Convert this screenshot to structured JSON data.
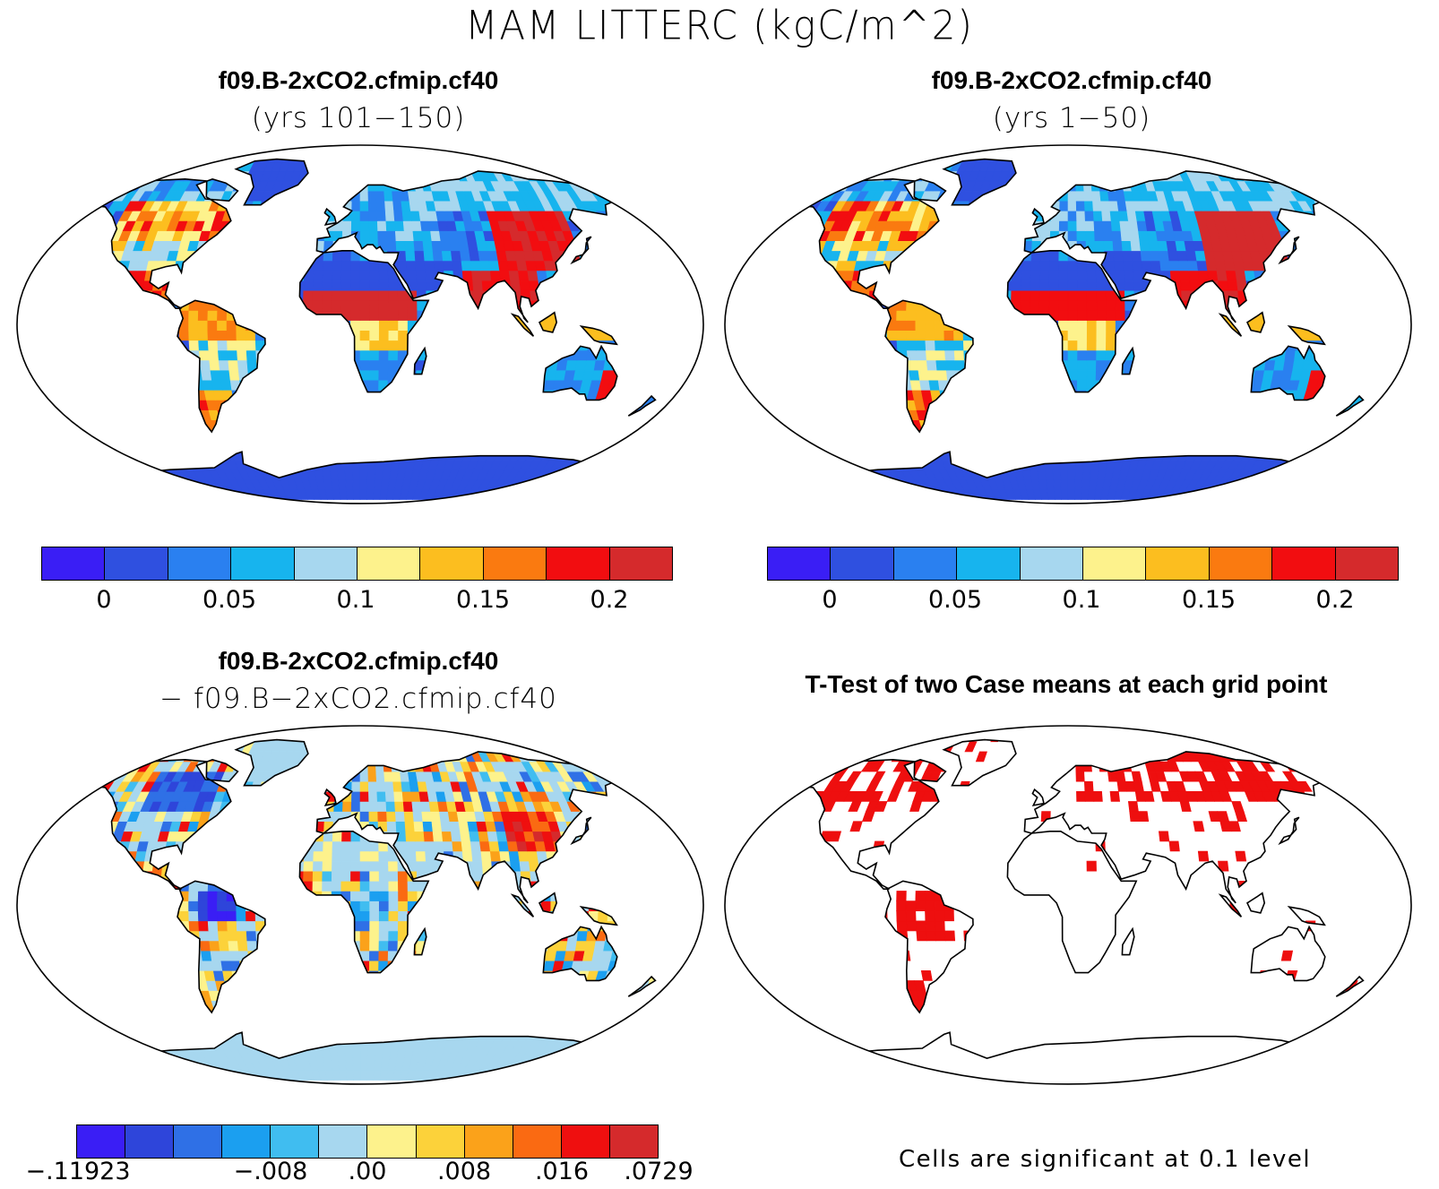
{
  "title": "MAM LITTERC (kgC/m^2)",
  "panels": [
    {
      "id": "top-left",
      "title": "f09.B-2xCO2.cfmip.cf40",
      "subtitle": "(yrs 101−150)"
    },
    {
      "id": "top-right",
      "title": "f09.B-2xCO2.cfmip.cf40",
      "subtitle": "(yrs 1−50)"
    },
    {
      "id": "bottom-left",
      "title": "f09.B-2xCO2.cfmip.cf40",
      "subtitle": "− f09.B−2xCO2.cfmip.cf40"
    },
    {
      "id": "bottom-right",
      "title": "T-Test of two Case means at each grid point",
      "subtitle": ""
    }
  ],
  "colorbars": {
    "absolute": {
      "colors": [
        "#3a1ef5",
        "#2f50e0",
        "#2a80f0",
        "#17b4ee",
        "#a7d7ef",
        "#fdf28c",
        "#fcbe1f",
        "#fa7a10",
        "#f20d10",
        "#d52a2c"
      ],
      "labels": [
        "0",
        "0.05",
        "0.1",
        "0.15",
        "0.2"
      ]
    },
    "difference": {
      "colors": [
        "#3a1ef5",
        "#2e45da",
        "#2f70e6",
        "#1b9ff0",
        "#40bdf0",
        "#a7d7ef",
        "#fdf28c",
        "#fcd23a",
        "#fba21a",
        "#fa6a12",
        "#ef0f0f",
        "#d52a2c"
      ],
      "labels": [
        "−.11923",
        "−.008",
        ".00",
        ".008",
        ".016",
        ".0729"
      ]
    }
  },
  "significance_color": "#ee0f0f",
  "footnote": "Cells are significant at 0.1 level"
}
